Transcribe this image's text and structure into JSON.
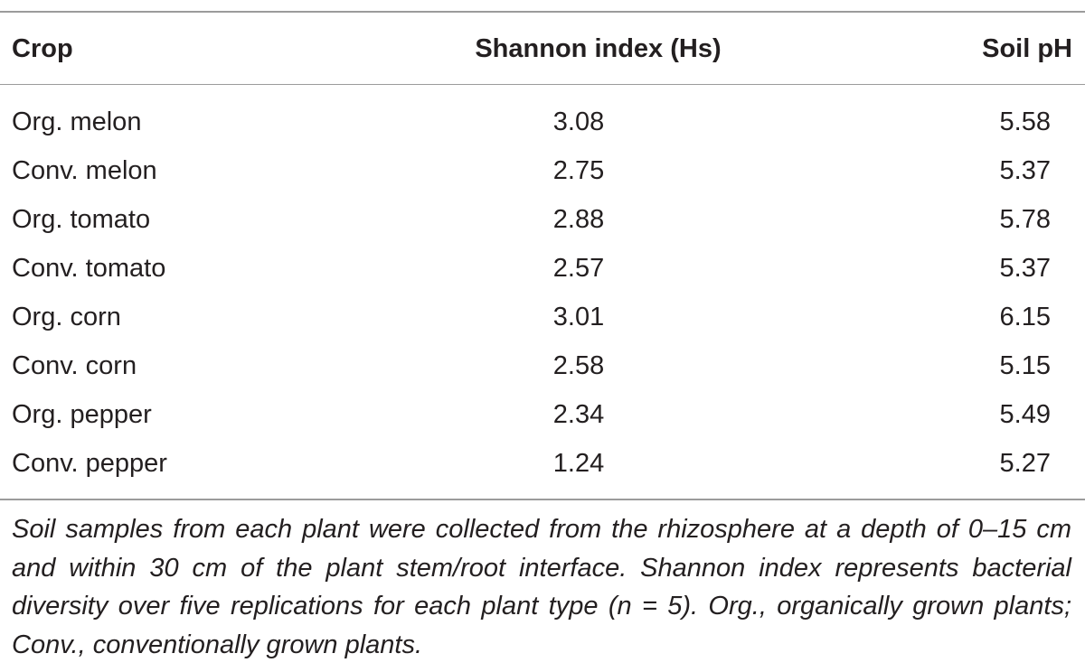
{
  "table": {
    "headers": {
      "crop": "Crop",
      "shannon": "Shannon index (Hs)",
      "ph": "Soil pH"
    },
    "rows": [
      {
        "crop": "Org. melon",
        "shannon": "3.08",
        "ph": "5.58"
      },
      {
        "crop": "Conv. melon",
        "shannon": "2.75",
        "ph": "5.37"
      },
      {
        "crop": "Org. tomato",
        "shannon": "2.88",
        "ph": "5.78"
      },
      {
        "crop": "Conv. tomato",
        "shannon": "2.57",
        "ph": "5.37"
      },
      {
        "crop": "Org. corn",
        "shannon": "3.01",
        "ph": "6.15"
      },
      {
        "crop": "Conv. corn",
        "shannon": "2.58",
        "ph": "5.15"
      },
      {
        "crop": "Org. pepper",
        "shannon": "2.34",
        "ph": "5.49"
      },
      {
        "crop": "Conv. pepper",
        "shannon": "1.24",
        "ph": "5.27"
      }
    ],
    "footnote": "Soil samples from each plant were collected from the rhizosphere at a depth of 0–15 cm and within 30 cm of the plant stem/root interface. Shannon index represents bacterial diversity over five replications for each plant type (n = 5). Org., organically grown plants; Conv., conventionally grown plants."
  }
}
